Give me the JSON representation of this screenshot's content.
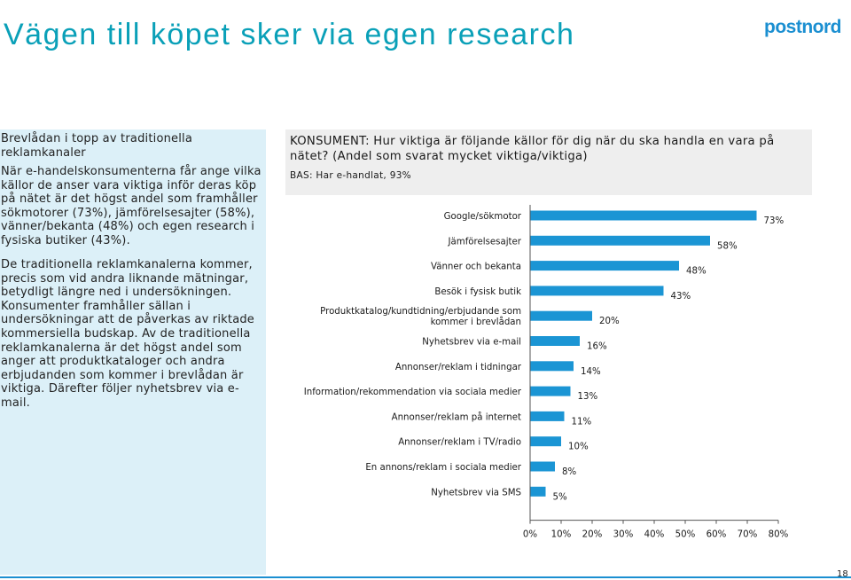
{
  "page": {
    "title": "Vägen till köpet sker via egen research",
    "logo": "postnord",
    "page_number": "18"
  },
  "left_panel": {
    "heading": "Brevlådan i topp av traditionella reklamkanaler",
    "paragraph1": "När e-handelskonsumenterna får ange vilka källor de anser vara viktiga inför deras köp på nätet är det högst andel som framhåller sökmotorer (73%), jämförelsesajter (58%), vänner/bekanta (48%) och egen research i fysiska butiker (43%).",
    "paragraph2": "De traditionella reklamkanalerna kommer, precis som vid andra liknande mätningar, betydligt längre ned i undersökningen. Konsumenter framhåller sällan i undersökningar att de påverkas av riktade kommersiella budskap. Av de traditionella reklamkanalerna är det högst andel som anger att produktkataloger och andra erbjudanden som kommer i brevlådan är viktiga. Därefter följer nyhetsbrev via e-mail."
  },
  "question": {
    "text": "KONSUMENT: Hur viktiga är följande källor för dig när du ska handla en vara på nätet? (Andel som svarat mycket viktiga/viktiga)",
    "base": "BAS: Har e-handlat, 93%"
  },
  "colors": {
    "accent": "#0aa0b8",
    "brand": "#1b8fd1",
    "bar_fill": "#1b95d4",
    "panel_bg": "#dcf0f8",
    "question_bg": "#eeeeee"
  },
  "chart_data": {
    "type": "bar",
    "orientation": "horizontal",
    "categories": [
      "Google/sökmotor",
      "Jämförelsesajter",
      "Vänner och bekanta",
      "Besök i fysisk butik",
      "Produktkatalog/kundtidning/erbjudande som kommer i brevlådan",
      "Nyhetsbrev via e-mail",
      "Annonser/reklam i tidningar",
      "Information/rekommendation via sociala medier",
      "Annonser/reklam på internet",
      "Annonser/reklam i TV/radio",
      "En annons/reklam i sociala medier",
      "Nyhetsbrev via SMS"
    ],
    "values": [
      73,
      58,
      48,
      43,
      20,
      16,
      14,
      13,
      11,
      10,
      8,
      5
    ],
    "value_labels": [
      "73%",
      "58%",
      "48%",
      "43%",
      "20%",
      "16%",
      "14%",
      "13%",
      "11%",
      "10%",
      "8%",
      "5%"
    ],
    "xlim": [
      0,
      80
    ],
    "x_ticks": [
      0,
      10,
      20,
      30,
      40,
      50,
      60,
      70,
      80
    ],
    "x_tick_labels": [
      "0%",
      "10%",
      "20%",
      "30%",
      "40%",
      "50%",
      "60%",
      "70%",
      "80%"
    ],
    "grid": false,
    "legend": "none"
  }
}
